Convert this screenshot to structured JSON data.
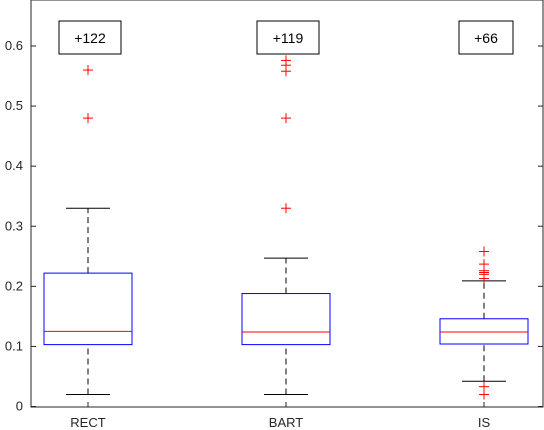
{
  "chart_data": {
    "type": "box",
    "categories": [
      "RECT",
      "BART",
      "IS"
    ],
    "ylim": [
      0,
      0.66
    ],
    "yticks": [
      0,
      0.1,
      0.2,
      0.3,
      0.4,
      0.5,
      0.6
    ],
    "ytick_labels": [
      "0",
      "0.1",
      "0.2",
      "0.3",
      "0.4",
      "0.5",
      "0.6"
    ],
    "grid": false,
    "boxes": [
      {
        "category": "RECT",
        "whisker_low": 0.02,
        "q1": 0.103,
        "median": 0.125,
        "q3": 0.222,
        "whisker_high": 0.33,
        "outliers": [
          0.48,
          0.56
        ],
        "annotation": "+122"
      },
      {
        "category": "BART",
        "whisker_low": 0.02,
        "q1": 0.103,
        "median": 0.124,
        "q3": 0.188,
        "whisker_high": 0.247,
        "outliers": [
          0.33,
          0.48,
          0.558,
          0.568,
          0.576
        ],
        "annotation": "+119"
      },
      {
        "category": "IS",
        "whisker_low": 0.042,
        "q1": 0.104,
        "median": 0.124,
        "q3": 0.146,
        "whisker_high": 0.209,
        "outliers": [
          0.02,
          0.033,
          0.213,
          0.22,
          0.223,
          0.226,
          0.237,
          0.258
        ],
        "annotation": "+66"
      }
    ],
    "colors": {
      "box": "#0000ff",
      "median": "#ff0000",
      "whisker": "#000000",
      "outlier": "#ff0000"
    }
  }
}
